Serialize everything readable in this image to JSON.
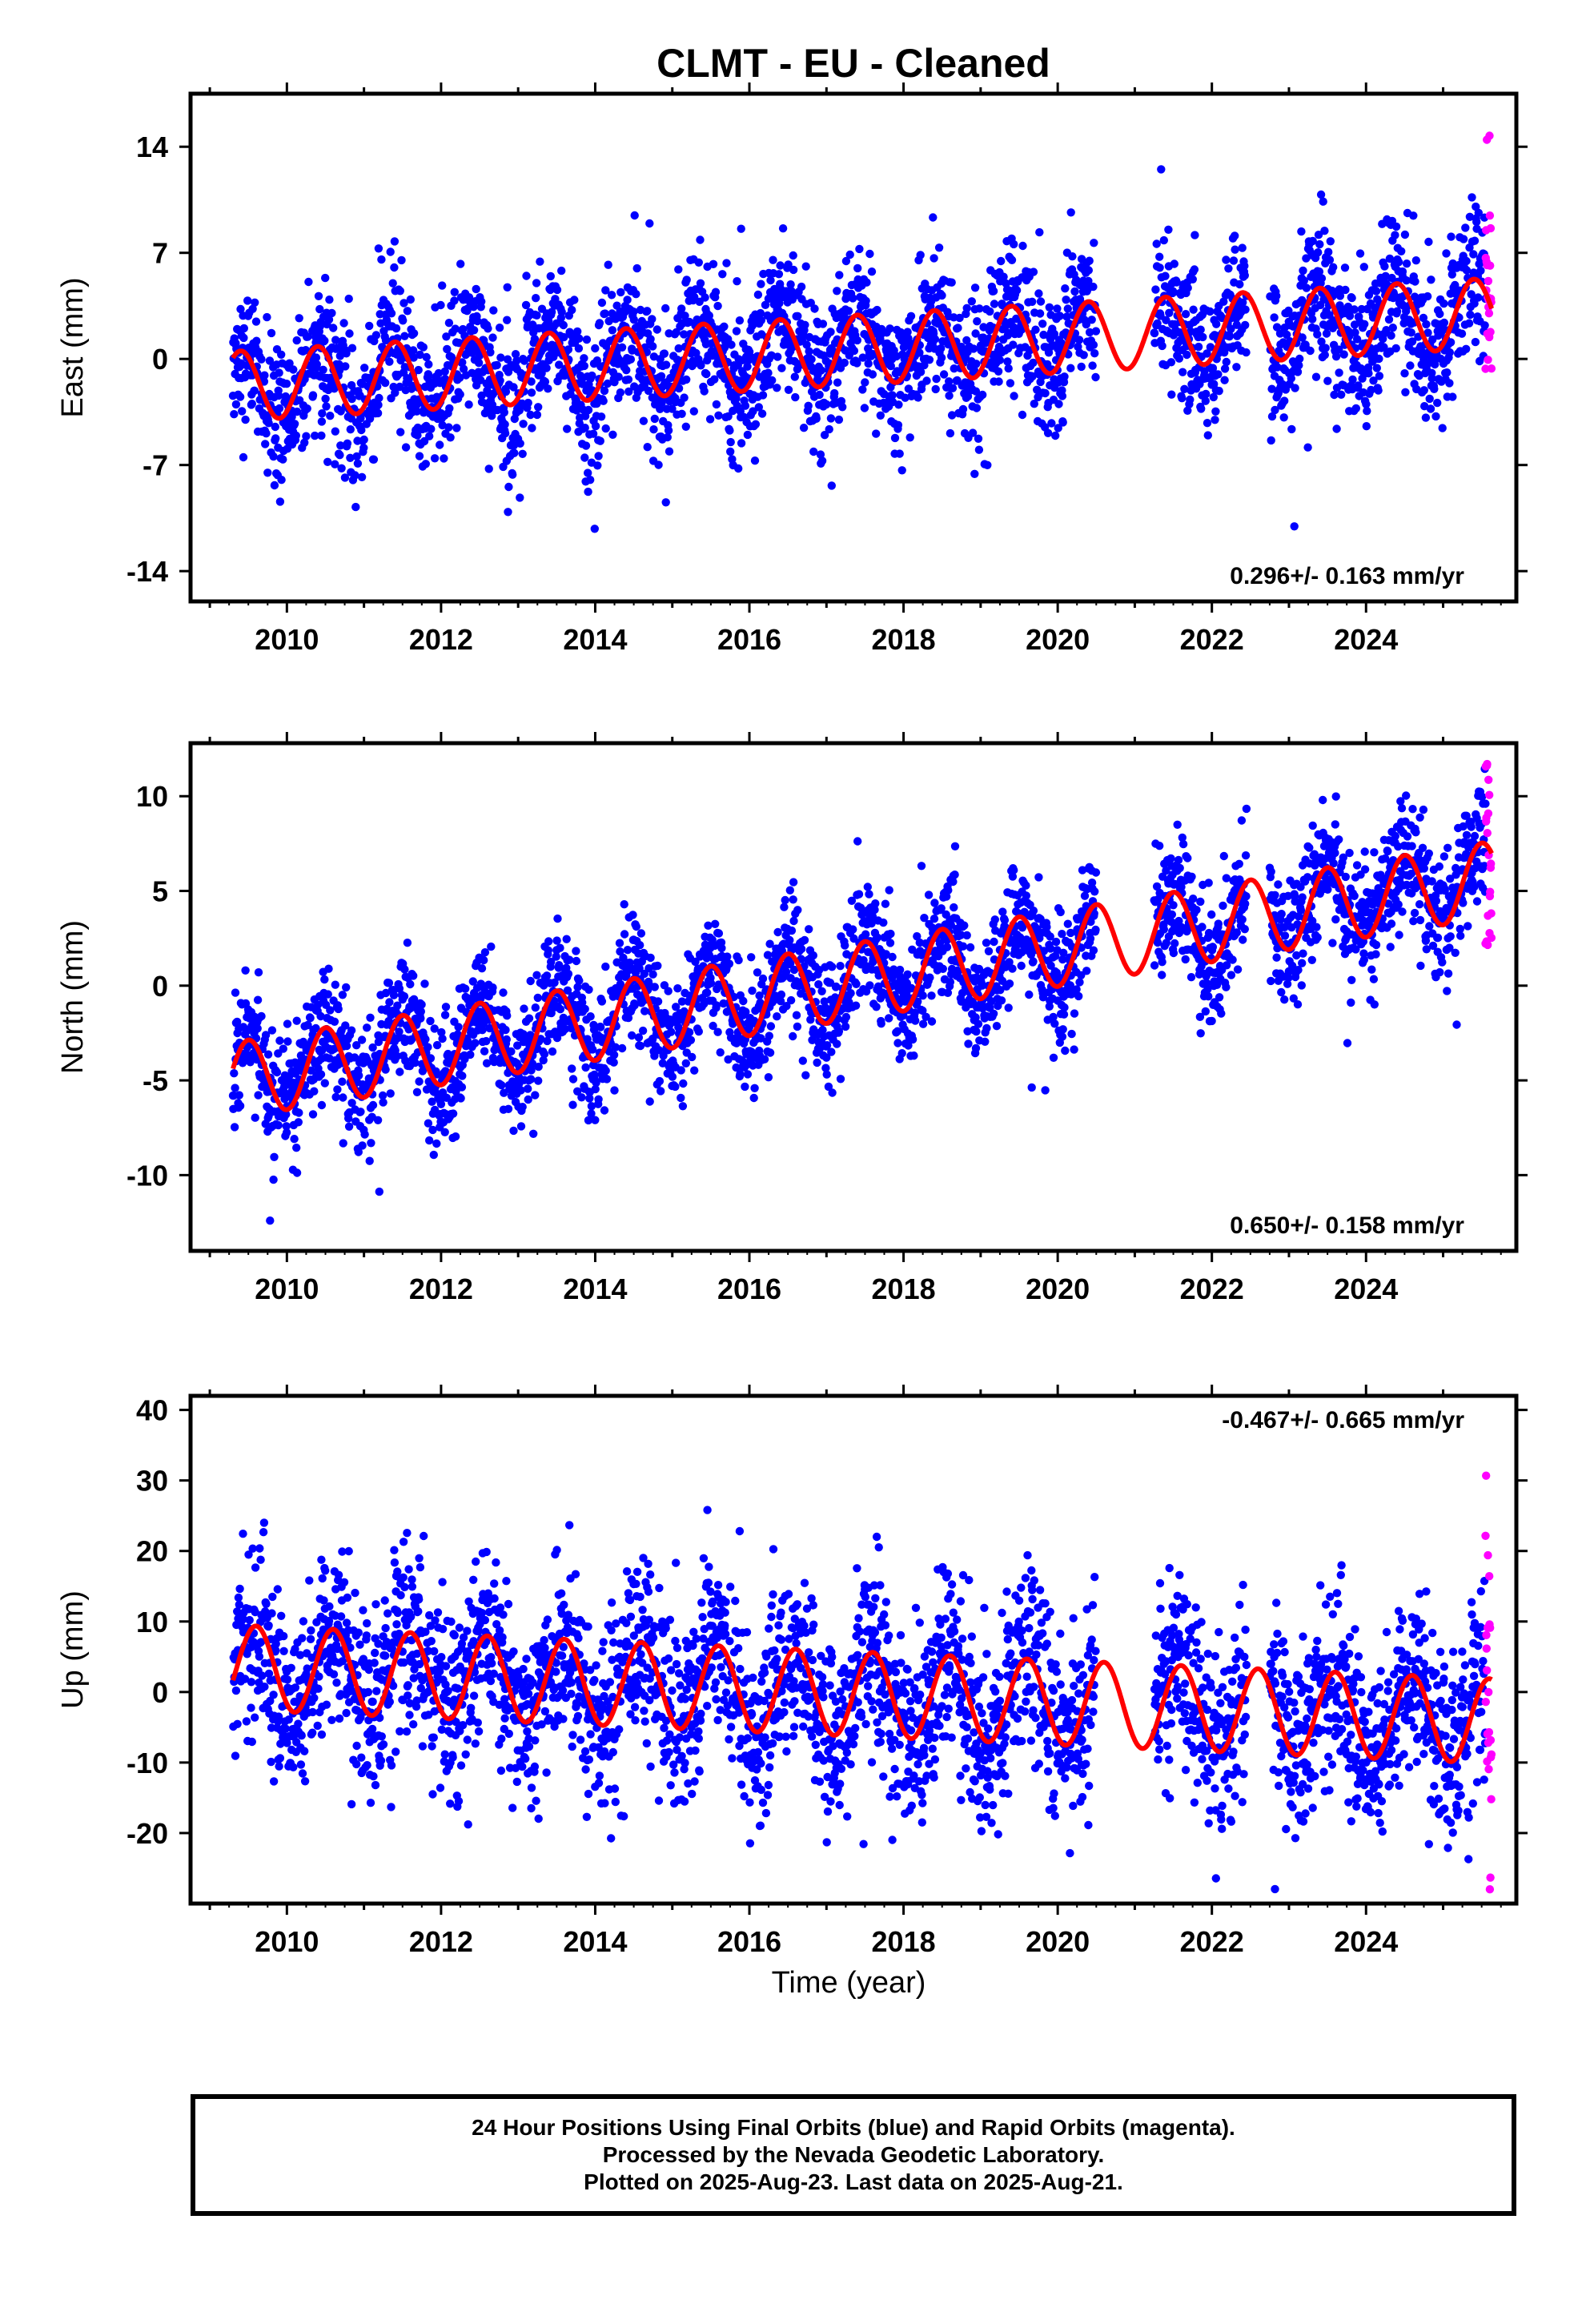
{
  "title": "CLMT  - EU - Cleaned",
  "xlabel": "Time (year)",
  "colors": {
    "final": "#0000ff",
    "rapid": "#ff00ff",
    "model": "#ff0000",
    "frame": "#000000"
  },
  "footer": {
    "line1": "24 Hour Positions Using Final Orbits (blue) and Rapid Orbits (magenta).",
    "line2": "Processed by the Nevada Geodetic Laboratory.",
    "line3": "Plotted on 2025-Aug-23. Last data on 2025-Aug-21."
  },
  "chart_data": [
    {
      "type": "scatter",
      "ylabel": "East (mm)",
      "xlim": [
        2008.75,
        2025.95
      ],
      "ylim": [
        -16,
        17.5
      ],
      "yticks": [
        14,
        7,
        0,
        -7,
        -14
      ],
      "xticks": [
        2010,
        2012,
        2014,
        2016,
        2018,
        2020,
        2022,
        2024
      ],
      "rate": "0.296+/- 0.163 mm/yr",
      "rate_position": "bottom-right",
      "model": {
        "offset": -1.8,
        "trend": 0.296,
        "amplitude": 2.3,
        "peak_phase": 0.4
      },
      "noise": 2.4,
      "series": [
        {
          "name": "Final Orbits",
          "color": "#0000ff",
          "x_start": 2009.3,
          "x_end": 2025.55
        },
        {
          "name": "Rapid Orbits",
          "color": "#ff00ff",
          "x_start": 2025.55,
          "x_end": 2025.63
        }
      ]
    },
    {
      "type": "scatter",
      "ylabel": "North (mm)",
      "xlim": [
        2008.75,
        2025.95
      ],
      "ylim": [
        -14,
        12.8
      ],
      "yticks": [
        10,
        5,
        0,
        -5,
        -10
      ],
      "xticks": [
        2010,
        2012,
        2014,
        2016,
        2018,
        2020,
        2022,
        2024
      ],
      "rate": "0.650+/- 0.158 mm/yr",
      "rate_position": "bottom-right",
      "model": {
        "offset": -5.0,
        "trend": 0.65,
        "amplitude": 2.0,
        "peak_phase": 0.5
      },
      "noise": 1.6,
      "series": [
        {
          "name": "Final Orbits",
          "color": "#0000ff",
          "x_start": 2009.3,
          "x_end": 2025.55
        },
        {
          "name": "Rapid Orbits",
          "color": "#ff00ff",
          "x_start": 2025.55,
          "x_end": 2025.63
        }
      ]
    },
    {
      "type": "scatter",
      "ylabel": "Up (mm)",
      "xlim": [
        2008.75,
        2025.95
      ],
      "ylim": [
        -30,
        42
      ],
      "yticks": [
        40,
        30,
        20,
        10,
        0,
        -10,
        -20
      ],
      "xticks": [
        2010,
        2012,
        2014,
        2016,
        2018,
        2020,
        2022,
        2024
      ],
      "rate": "-0.467+/- 0.665 mm/yr",
      "rate_position": "top-right",
      "model": {
        "offset": 3.5,
        "trend": -0.467,
        "amplitude": 6.0,
        "peak_phase": 0.6
      },
      "noise": 6.5,
      "series": [
        {
          "name": "Final Orbits",
          "color": "#0000ff",
          "x_start": 2009.3,
          "x_end": 2025.55
        },
        {
          "name": "Rapid Orbits",
          "color": "#ff00ff",
          "x_start": 2025.55,
          "x_end": 2025.63
        }
      ]
    }
  ]
}
